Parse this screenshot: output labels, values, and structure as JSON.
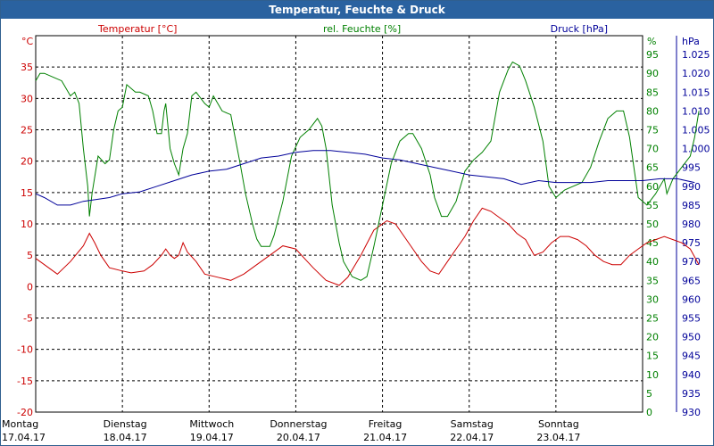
{
  "window": {
    "title": "Temperatur, Feuchte & Druck"
  },
  "colors": {
    "temperature": "#cc0000",
    "humidity": "#008000",
    "pressure": "#000099",
    "grid": "#000000"
  },
  "chart_data": {
    "type": "line",
    "grid": "dashed",
    "legend": "top",
    "x_labels": [
      {
        "day": "Montag",
        "date": "17.04.17"
      },
      {
        "day": "Dienstag",
        "date": "18.04.17"
      },
      {
        "day": "Mittwoch",
        "date": "19.04.17"
      },
      {
        "day": "Donnerstag",
        "date": "20.04.17"
      },
      {
        "day": "Freitag",
        "date": "21.04.17"
      },
      {
        "day": "Samstag",
        "date": "22.04.17"
      },
      {
        "day": "Sonntag",
        "date": "23.04.17"
      }
    ],
    "axes": {
      "left": {
        "unit": "°C",
        "range": [
          -20,
          40
        ],
        "ticks": [
          "35",
          "30",
          "25",
          "20",
          "15",
          "10",
          "5",
          "0",
          "-5",
          "-10",
          "-15",
          "-20"
        ]
      },
      "right1": {
        "unit": "%",
        "range": [
          0,
          100
        ],
        "ticks": [
          "95",
          "90",
          "85",
          "80",
          "75",
          "70",
          "65",
          "60",
          "55",
          "50",
          "45",
          "40",
          "35",
          "30",
          "25",
          "20",
          "15",
          "10",
          "5",
          "0"
        ]
      },
      "right2": {
        "unit": "hPa",
        "range": [
          930,
          1030
        ],
        "ticks": [
          "1.025",
          "1.020",
          "1.015",
          "1.010",
          "1.005",
          "1.000",
          "995",
          "990",
          "985",
          "980",
          "975",
          "970",
          "965",
          "960",
          "955",
          "950",
          "945",
          "940",
          "935",
          "930"
        ]
      }
    },
    "series": [
      {
        "name": "Temperatur [°C]",
        "axis": "left",
        "points": [
          [
            0,
            4.5
          ],
          [
            0.1,
            3.5
          ],
          [
            0.25,
            2
          ],
          [
            0.4,
            4
          ],
          [
            0.55,
            6.5
          ],
          [
            0.62,
            8.5
          ],
          [
            0.68,
            7
          ],
          [
            0.75,
            5
          ],
          [
            0.85,
            3
          ],
          [
            1.0,
            2.5
          ],
          [
            1.1,
            2.2
          ],
          [
            1.25,
            2.5
          ],
          [
            1.35,
            3.5
          ],
          [
            1.45,
            5
          ],
          [
            1.5,
            6
          ],
          [
            1.55,
            5
          ],
          [
            1.6,
            4.5
          ],
          [
            1.65,
            5
          ],
          [
            1.7,
            7
          ],
          [
            1.75,
            5.5
          ],
          [
            1.85,
            4
          ],
          [
            1.95,
            2
          ],
          [
            2.1,
            1.5
          ],
          [
            2.25,
            1
          ],
          [
            2.4,
            2
          ],
          [
            2.55,
            3.5
          ],
          [
            2.7,
            5
          ],
          [
            2.85,
            6.5
          ],
          [
            3.0,
            6
          ],
          [
            3.1,
            4.5
          ],
          [
            3.2,
            3
          ],
          [
            3.35,
            1
          ],
          [
            3.5,
            0.2
          ],
          [
            3.6,
            1.5
          ],
          [
            3.75,
            5
          ],
          [
            3.9,
            9
          ],
          [
            4.05,
            10.5
          ],
          [
            4.15,
            10
          ],
          [
            4.25,
            8
          ],
          [
            4.35,
            6
          ],
          [
            4.45,
            4
          ],
          [
            4.55,
            2.5
          ],
          [
            4.65,
            2
          ],
          [
            4.75,
            4
          ],
          [
            4.85,
            6
          ],
          [
            4.95,
            8
          ],
          [
            5.05,
            10.5
          ],
          [
            5.15,
            12.5
          ],
          [
            5.25,
            12
          ],
          [
            5.35,
            11
          ],
          [
            5.45,
            10
          ],
          [
            5.55,
            8.5
          ],
          [
            5.65,
            7.5
          ],
          [
            5.75,
            5
          ],
          [
            5.85,
            5.5
          ],
          [
            5.95,
            7
          ],
          [
            6.05,
            8
          ],
          [
            6.15,
            8
          ],
          [
            6.25,
            7.5
          ],
          [
            6.35,
            6.5
          ],
          [
            6.45,
            5
          ],
          [
            6.55,
            4
          ],
          [
            6.65,
            3.5
          ],
          [
            6.75,
            3.5
          ],
          [
            6.85,
            5
          ],
          [
            6.95,
            6
          ],
          [
            7.05,
            7
          ],
          [
            7.15,
            7.5
          ],
          [
            7.25,
            8
          ],
          [
            7.35,
            7.5
          ],
          [
            7.45,
            7
          ],
          [
            7.55,
            6
          ],
          [
            7.65,
            3.5
          ]
        ]
      },
      {
        "name": "rel. Feuchte [%]",
        "axis": "right1",
        "points": [
          [
            0,
            88
          ],
          [
            0.05,
            90
          ],
          [
            0.1,
            90
          ],
          [
            0.2,
            89
          ],
          [
            0.3,
            88
          ],
          [
            0.4,
            84
          ],
          [
            0.45,
            85
          ],
          [
            0.5,
            82
          ],
          [
            0.55,
            70
          ],
          [
            0.6,
            60
          ],
          [
            0.62,
            52
          ],
          [
            0.65,
            58
          ],
          [
            0.72,
            68
          ],
          [
            0.8,
            66
          ],
          [
            0.85,
            67
          ],
          [
            0.9,
            75
          ],
          [
            0.95,
            80
          ],
          [
            1.0,
            81
          ],
          [
            1.05,
            87
          ],
          [
            1.1,
            86
          ],
          [
            1.15,
            85
          ],
          [
            1.2,
            85
          ],
          [
            1.3,
            84
          ],
          [
            1.35,
            80
          ],
          [
            1.4,
            74
          ],
          [
            1.45,
            74
          ],
          [
            1.48,
            80
          ],
          [
            1.5,
            82
          ],
          [
            1.55,
            70
          ],
          [
            1.6,
            66
          ],
          [
            1.65,
            63
          ],
          [
            1.7,
            70
          ],
          [
            1.75,
            74
          ],
          [
            1.8,
            84
          ],
          [
            1.85,
            85
          ],
          [
            1.95,
            82
          ],
          [
            2.0,
            81
          ],
          [
            2.05,
            84
          ],
          [
            2.1,
            82
          ],
          [
            2.15,
            80
          ],
          [
            2.25,
            79
          ],
          [
            2.3,
            73
          ],
          [
            2.35,
            67
          ],
          [
            2.42,
            58
          ],
          [
            2.5,
            50
          ],
          [
            2.55,
            46
          ],
          [
            2.6,
            44
          ],
          [
            2.7,
            44
          ],
          [
            2.75,
            47
          ],
          [
            2.85,
            56
          ],
          [
            2.95,
            68
          ],
          [
            3.05,
            73
          ],
          [
            3.15,
            75
          ],
          [
            3.25,
            78
          ],
          [
            3.3,
            76
          ],
          [
            3.35,
            70
          ],
          [
            3.42,
            55
          ],
          [
            3.5,
            45
          ],
          [
            3.55,
            40
          ],
          [
            3.65,
            36
          ],
          [
            3.75,
            35
          ],
          [
            3.82,
            36
          ],
          [
            3.9,
            44
          ],
          [
            4.0,
            55
          ],
          [
            4.1,
            66
          ],
          [
            4.2,
            72
          ],
          [
            4.3,
            74
          ],
          [
            4.35,
            74
          ],
          [
            4.45,
            70
          ],
          [
            4.55,
            63
          ],
          [
            4.6,
            57
          ],
          [
            4.68,
            52
          ],
          [
            4.75,
            52
          ],
          [
            4.85,
            56
          ],
          [
            4.95,
            64
          ],
          [
            5.05,
            67
          ],
          [
            5.15,
            69
          ],
          [
            5.25,
            72
          ],
          [
            5.35,
            85
          ],
          [
            5.45,
            91
          ],
          [
            5.5,
            93
          ],
          [
            5.58,
            92
          ],
          [
            5.65,
            88
          ],
          [
            5.75,
            81
          ],
          [
            5.85,
            72
          ],
          [
            5.92,
            60
          ],
          [
            6.0,
            57
          ],
          [
            6.1,
            59
          ],
          [
            6.2,
            60
          ],
          [
            6.3,
            61
          ],
          [
            6.4,
            65
          ],
          [
            6.5,
            72
          ],
          [
            6.6,
            78
          ],
          [
            6.7,
            80
          ],
          [
            6.78,
            80
          ],
          [
            6.85,
            73
          ],
          [
            6.95,
            57
          ],
          [
            7.05,
            55
          ],
          [
            7.15,
            58
          ],
          [
            7.25,
            62
          ],
          [
            7.28,
            58
          ],
          [
            7.35,
            62
          ],
          [
            7.45,
            65
          ],
          [
            7.55,
            68
          ],
          [
            7.6,
            73
          ],
          [
            7.65,
            80
          ]
        ]
      },
      {
        "name": "Druck [hPa]",
        "axis": "right2",
        "points": [
          [
            0,
            988
          ],
          [
            0.1,
            987
          ],
          [
            0.25,
            985
          ],
          [
            0.4,
            985
          ],
          [
            0.55,
            986
          ],
          [
            0.7,
            986.5
          ],
          [
            0.85,
            987
          ],
          [
            1.0,
            988
          ],
          [
            1.2,
            988.5
          ],
          [
            1.4,
            990
          ],
          [
            1.6,
            991.5
          ],
          [
            1.8,
            993
          ],
          [
            2.0,
            994
          ],
          [
            2.2,
            994.5
          ],
          [
            2.4,
            996
          ],
          [
            2.6,
            997.5
          ],
          [
            2.8,
            998
          ],
          [
            3.0,
            999
          ],
          [
            3.2,
            999.5
          ],
          [
            3.4,
            999.5
          ],
          [
            3.6,
            999
          ],
          [
            3.8,
            998.5
          ],
          [
            4.0,
            997.5
          ],
          [
            4.2,
            997
          ],
          [
            4.4,
            996
          ],
          [
            4.6,
            995
          ],
          [
            4.8,
            994
          ],
          [
            5.0,
            993
          ],
          [
            5.2,
            992.5
          ],
          [
            5.4,
            992
          ],
          [
            5.6,
            990.5
          ],
          [
            5.8,
            991.5
          ],
          [
            6.0,
            991
          ],
          [
            6.2,
            991
          ],
          [
            6.4,
            991
          ],
          [
            6.6,
            991.5
          ],
          [
            6.8,
            991.5
          ],
          [
            7.0,
            991.5
          ],
          [
            7.2,
            992
          ],
          [
            7.4,
            992
          ],
          [
            7.6,
            991
          ]
        ]
      }
    ]
  }
}
